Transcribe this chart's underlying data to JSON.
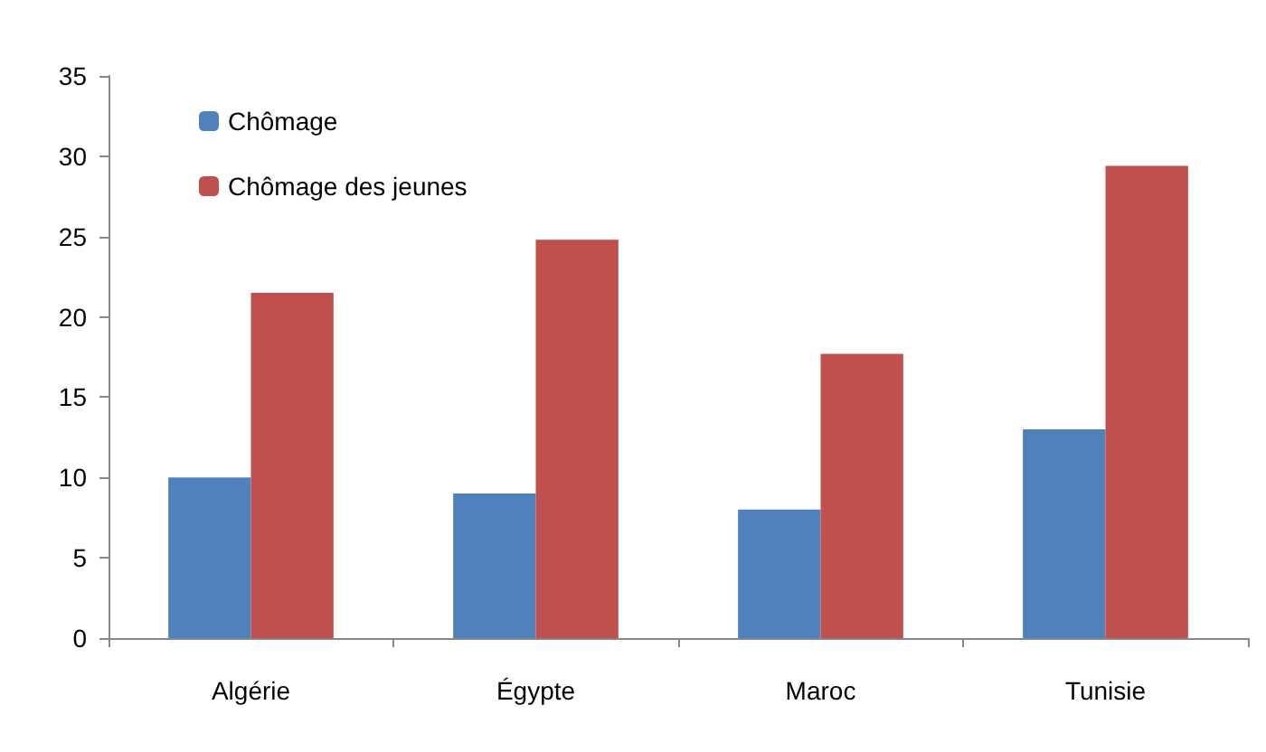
{
  "chart_data": {
    "type": "bar",
    "categories": [
      "Algérie",
      "Égypte",
      "Maroc",
      "Tunisie"
    ],
    "series": [
      {
        "name": "Chômage",
        "color": "#4f81bd",
        "values": [
          10,
          9,
          8,
          13
        ]
      },
      {
        "name": "Chômage des jeunes",
        "color": "#c0504d",
        "values": [
          21.5,
          24.8,
          17.7,
          29.4
        ]
      }
    ],
    "ylim": [
      0,
      35
    ],
    "yticks": [
      0,
      5,
      10,
      15,
      20,
      25,
      30,
      35
    ],
    "grid": false,
    "legend": "top left"
  }
}
